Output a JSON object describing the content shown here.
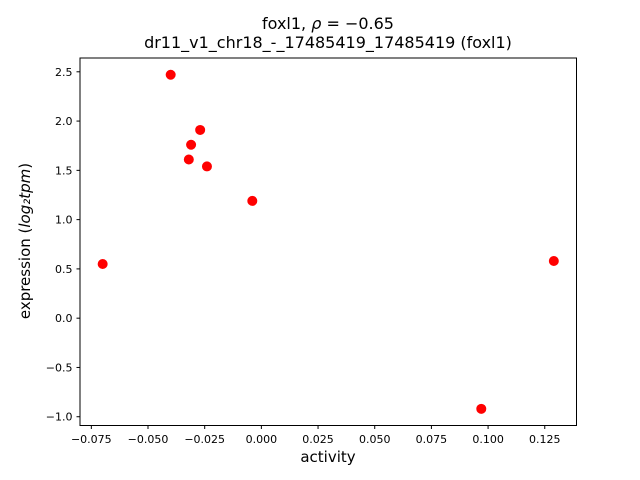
{
  "figure": {
    "title_prefix": "foxl1, ",
    "title_rho": "ρ",
    "title_suffix": " = −0.65",
    "subtitle": "dr11_v1_chr18_-_17485419_17485419 (foxl1)",
    "xlabel": "activity",
    "ylabel_prefix": "expression (",
    "ylabel_math": "log₂tpm",
    "ylabel_suffix": ")"
  },
  "chart_data": {
    "type": "scatter",
    "title": "foxl1, ρ = −0.65",
    "subtitle": "dr11_v1_chr18_-_17485419_17485419 (foxl1)",
    "rho": -0.65,
    "xlabel": "activity",
    "ylabel": "expression (log₂tpm)",
    "grid": false,
    "legend": false,
    "marker_color": "#ff0000",
    "marker_radius_px": 5,
    "xlim": [
      -0.08,
      0.139
    ],
    "ylim": [
      -1.089,
      2.64
    ],
    "xticks": [
      -0.075,
      -0.05,
      -0.025,
      0.0,
      0.025,
      0.05,
      0.075,
      0.1,
      0.125
    ],
    "xtick_labels": [
      "−0.075",
      "−0.050",
      "−0.025",
      "0.000",
      "0.025",
      "0.050",
      "0.075",
      "0.100",
      "0.125"
    ],
    "yticks": [
      -1.0,
      -0.5,
      0.0,
      0.5,
      1.0,
      1.5,
      2.0,
      2.5
    ],
    "ytick_labels": [
      "−1.0",
      "−0.5",
      "0.0",
      "0.5",
      "1.0",
      "1.5",
      "2.0",
      "2.5"
    ],
    "points": [
      {
        "x": -0.07,
        "y": 0.55
      },
      {
        "x": -0.04,
        "y": 2.47
      },
      {
        "x": -0.032,
        "y": 1.61
      },
      {
        "x": -0.031,
        "y": 1.76
      },
      {
        "x": -0.027,
        "y": 1.91
      },
      {
        "x": -0.024,
        "y": 1.54
      },
      {
        "x": -0.004,
        "y": 1.19
      },
      {
        "x": 0.097,
        "y": -0.92
      },
      {
        "x": 0.129,
        "y": 0.58
      }
    ]
  }
}
